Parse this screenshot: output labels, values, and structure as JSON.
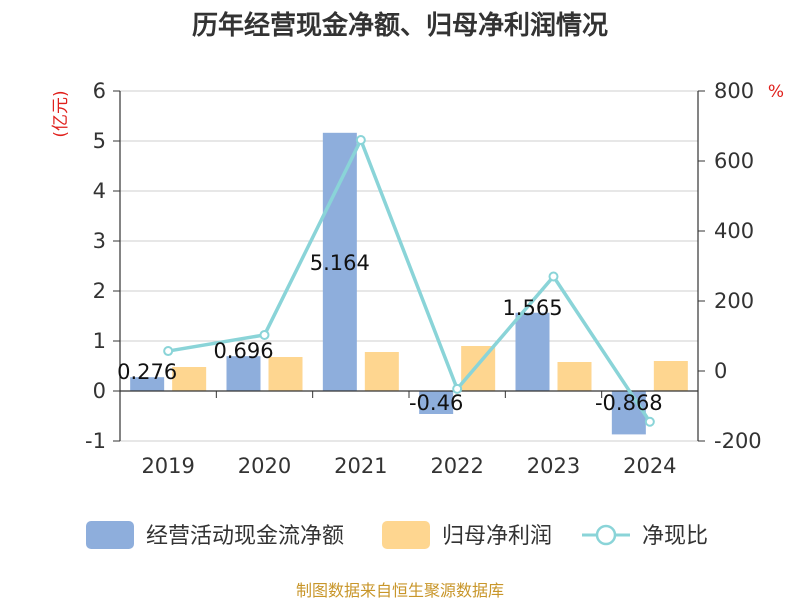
{
  "title": "历年经营现金净额、归母净利润情况",
  "source": "制图数据来自恒生聚源数据库",
  "colors": {
    "cashflow": "#8eaedc",
    "profit": "#fed690",
    "ratio": "#8ad4d8",
    "axis": "#333333",
    "grid": "#cfcfcf",
    "unit": "#e0201c",
    "source": "#c8962a"
  },
  "chart_data": {
    "type": "bar",
    "title": "历年经营现金净额、归母净利润情况",
    "categories": [
      "2019",
      "2020",
      "2021",
      "2022",
      "2023",
      "2024"
    ],
    "left_axis": {
      "unit_label": "(亿元)",
      "ylim": [
        -1,
        6
      ],
      "ticks": [
        -1,
        0,
        1,
        2,
        3,
        4,
        5,
        6
      ]
    },
    "right_axis": {
      "unit_label": "%",
      "ylim": [
        -200,
        800
      ],
      "ticks": [
        -200,
        0,
        200,
        400,
        600,
        800
      ]
    },
    "series": [
      {
        "name": "经营活动现金流净额",
        "type": "bar",
        "axis": "left",
        "values": [
          0.276,
          0.696,
          5.164,
          -0.46,
          1.565,
          -0.868
        ],
        "labels": [
          "0.276",
          "0.696",
          "5.164",
          "-0.46",
          "1.565",
          "-0.868"
        ]
      },
      {
        "name": "归母净利润",
        "type": "bar",
        "axis": "left",
        "values": [
          0.48,
          0.68,
          0.78,
          0.9,
          0.58,
          0.6
        ]
      },
      {
        "name": "净现比",
        "type": "line",
        "axis": "right",
        "values": [
          57,
          103,
          660,
          -51,
          270,
          -145
        ]
      }
    ],
    "legend_position": "bottom",
    "grid": true
  }
}
